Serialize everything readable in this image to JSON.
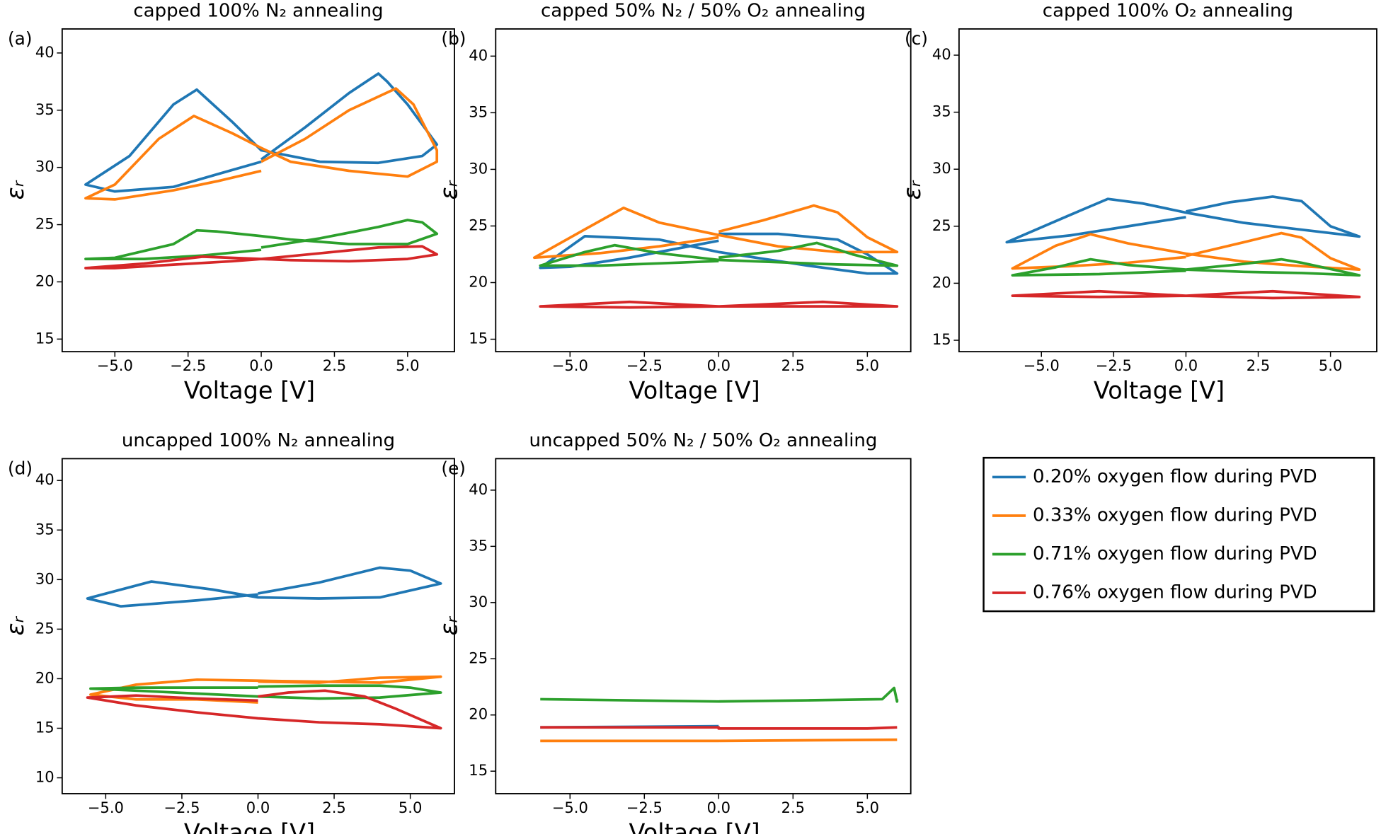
{
  "chart_data": [
    {
      "type": "line",
      "panel": "(a)",
      "title": "capped 100% N₂ annealing",
      "xlabel": "Voltage [V]",
      "ylabel": "εᵣ",
      "xlim": [
        -6.8,
        6.6
      ],
      "ylim": [
        13.9,
        42.1
      ],
      "xticks": [
        {
          "value": -5,
          "label": "−5.0"
        },
        {
          "value": -2.5,
          "label": "−2.5"
        },
        {
          "value": 0,
          "label": "0.0"
        },
        {
          "value": 2.5,
          "label": "2.5"
        },
        {
          "value": 5,
          "label": "5.0"
        }
      ],
      "yticks": [
        15,
        20,
        25,
        30,
        35,
        40
      ],
      "series": [
        {
          "name": "0.20% oxygen flow during PVD",
          "color": "#1f77b4",
          "x": [
            0,
            1.5,
            3,
            4,
            4.3,
            5,
            6,
            5.5,
            4,
            2,
            0,
            -1,
            -2.2,
            -3,
            -4.5,
            -6,
            -5,
            -3,
            -1.5,
            0
          ],
          "values": [
            30.7,
            33.5,
            36.5,
            38.2,
            37.5,
            35.5,
            32,
            31,
            30.4,
            30.5,
            31.5,
            34,
            36.8,
            35.5,
            31,
            28.5,
            27.9,
            28.3,
            29.4,
            30.5
          ]
        },
        {
          "name": "0.33% oxygen flow during PVD",
          "color": "#ff7f0e",
          "x": [
            0,
            1.5,
            3,
            4.6,
            5.2,
            6,
            6,
            5,
            3,
            1,
            0,
            -1,
            -2.3,
            -3.5,
            -5,
            -6,
            -5,
            -3,
            -1.5,
            0
          ],
          "values": [
            30.5,
            32.5,
            35,
            36.9,
            35.5,
            31.5,
            30.5,
            29.2,
            29.7,
            30.5,
            31.7,
            33,
            34.5,
            32.5,
            28.5,
            27.3,
            27.2,
            28,
            28.8,
            29.7
          ]
        },
        {
          "name": "0.71% oxygen flow during PVD",
          "color": "#2ca02c",
          "x": [
            0,
            2,
            4,
            5,
            5.5,
            6,
            5,
            3,
            1,
            0,
            -1.5,
            -2.2,
            -3,
            -5,
            -6,
            -4,
            -2,
            0
          ],
          "values": [
            23,
            23.8,
            24.8,
            25.4,
            25.2,
            24.2,
            23.3,
            23.3,
            23.7,
            24,
            24.4,
            24.5,
            23.3,
            22.1,
            22,
            22,
            22.3,
            22.8
          ]
        },
        {
          "name": "0.76% oxygen flow during PVD",
          "color": "#d62728",
          "x": [
            0,
            2,
            4,
            5.5,
            6,
            5,
            3,
            1,
            0,
            -2,
            -4,
            -6,
            -5,
            -3,
            -1,
            0
          ],
          "values": [
            22,
            22.5,
            23,
            23.1,
            22.4,
            22.0,
            21.8,
            21.9,
            22,
            22.2,
            21.6,
            21.2,
            21.2,
            21.5,
            21.8,
            22
          ]
        }
      ]
    },
    {
      "type": "line",
      "panel": "(b)",
      "title": "capped 50% N₂ / 50% O₂ annealing",
      "xlabel": "Voltage [V]",
      "ylabel": "εᵣ",
      "xlim": [
        -7.5,
        6.46
      ],
      "ylim": [
        13.9,
        42.4
      ],
      "xticks": [
        {
          "value": -5,
          "label": "−5.0"
        },
        {
          "value": -2.5,
          "label": "−2.5"
        },
        {
          "value": 0,
          "label": "0.0"
        },
        {
          "value": 2.5,
          "label": "2.5"
        },
        {
          "value": 5,
          "label": "5.0"
        }
      ],
      "yticks": [
        15,
        20,
        25,
        30,
        35,
        40
      ],
      "series": [
        {
          "color": "#1f77b4",
          "x": [
            0,
            2,
            4,
            5,
            6,
            5,
            3,
            0,
            -2,
            -4.5,
            -6,
            -5,
            -3,
            -1,
            0
          ],
          "values": [
            24.3,
            24.3,
            23.8,
            22.5,
            20.8,
            20.8,
            21.5,
            22.7,
            23.8,
            24.1,
            21.3,
            21.4,
            22.2,
            23.2,
            23.7
          ]
        },
        {
          "color": "#ff7f0e",
          "x": [
            0,
            1.5,
            3.2,
            4,
            5,
            6,
            4,
            2,
            0,
            -2,
            -3.2,
            -4.5,
            -6.2,
            -4,
            -2,
            0
          ],
          "values": [
            24.5,
            25.5,
            26.8,
            26.2,
            24,
            22.7,
            22.7,
            23.2,
            24.2,
            25.3,
            26.6,
            24.7,
            22.2,
            22.6,
            23.2,
            24
          ]
        },
        {
          "color": "#2ca02c",
          "x": [
            0,
            2,
            3.3,
            4.5,
            6,
            4,
            2,
            0,
            -2,
            -3.5,
            -4.5,
            -6,
            -4,
            -2,
            0
          ],
          "values": [
            22.2,
            22.8,
            23.5,
            22.5,
            21.5,
            21.6,
            21.8,
            22,
            22.6,
            23.3,
            22.7,
            21.5,
            21.5,
            21.7,
            21.9
          ]
        },
        {
          "color": "#d62728",
          "x": [
            0,
            3.5,
            6,
            3,
            0,
            -3,
            -6,
            -3,
            0
          ],
          "values": [
            17.9,
            18.3,
            17.9,
            17.9,
            17.9,
            18.3,
            17.9,
            17.8,
            17.9
          ]
        }
      ]
    },
    {
      "type": "line",
      "panel": "(c)",
      "title": "capped 100% O₂ annealing",
      "xlabel": "Voltage [V]",
      "ylabel": "εᵣ",
      "xlim": [
        -7.85,
        6.6
      ],
      "ylim": [
        14.0,
        42.3
      ],
      "xticks": [
        {
          "value": -5,
          "label": "−5.0"
        },
        {
          "value": -2.5,
          "label": "−2.5"
        },
        {
          "value": 0,
          "label": "0.0"
        },
        {
          "value": 2.5,
          "label": "2.5"
        },
        {
          "value": 5,
          "label": "5.0"
        }
      ],
      "yticks": [
        15,
        20,
        25,
        30,
        35,
        40
      ],
      "series": [
        {
          "color": "#1f77b4",
          "x": [
            0,
            1.5,
            3,
            4,
            5,
            6,
            4,
            2,
            0,
            -1.5,
            -2.7,
            -4,
            -6.2,
            -4,
            -2,
            0
          ],
          "values": [
            26.3,
            27.1,
            27.6,
            27.2,
            25,
            24.1,
            24.7,
            25.3,
            26.2,
            27,
            27.4,
            26,
            23.6,
            24.2,
            25,
            25.8
          ]
        },
        {
          "color": "#ff7f0e",
          "x": [
            0,
            2,
            3.3,
            4,
            5,
            6,
            4,
            2,
            0,
            -2,
            -3.3,
            -4.5,
            -6,
            -4,
            -2,
            0
          ],
          "values": [
            22.4,
            23.6,
            24.4,
            24,
            22.2,
            21.2,
            21.5,
            21.9,
            22.6,
            23.5,
            24.3,
            23.3,
            21.3,
            21.5,
            21.8,
            22.3
          ]
        },
        {
          "color": "#2ca02c",
          "x": [
            0,
            2,
            3.3,
            4,
            6,
            4,
            2,
            0,
            -2,
            -3.3,
            -4.5,
            -6,
            -3,
            0
          ],
          "values": [
            21.2,
            21.7,
            22.1,
            21.8,
            20.7,
            20.9,
            21,
            21.2,
            21.6,
            22.1,
            21.4,
            20.7,
            20.8,
            21.1
          ]
        },
        {
          "color": "#d62728",
          "x": [
            0,
            3,
            6,
            3,
            0,
            -3,
            -6,
            -3,
            0
          ],
          "values": [
            18.9,
            19.3,
            18.8,
            18.7,
            18.9,
            19.3,
            18.9,
            18.8,
            18.9
          ]
        }
      ]
    },
    {
      "type": "line",
      "panel": "(d)",
      "title": "uncapped 100% N₂ annealing",
      "xlabel": "Voltage [V]",
      "ylabel": "εᵣ",
      "xlim": [
        -6.43,
        6.45
      ],
      "ylim": [
        8.4,
        42.2
      ],
      "xticks": [
        {
          "value": -5,
          "label": "−5.0"
        },
        {
          "value": -2.5,
          "label": "−2.5"
        },
        {
          "value": 0,
          "label": "0.0"
        },
        {
          "value": 2.5,
          "label": "2.5"
        },
        {
          "value": 5,
          "label": "5.0"
        }
      ],
      "yticks": [
        10,
        15,
        20,
        25,
        30,
        35,
        40
      ],
      "series": [
        {
          "color": "#1f77b4",
          "x": [
            0,
            2,
            4,
            5,
            6,
            4,
            2,
            0,
            -1.5,
            -3.5,
            -5.6,
            -4.5,
            -2,
            0
          ],
          "values": [
            28.6,
            29.7,
            31.2,
            30.9,
            29.6,
            28.2,
            28.1,
            28.2,
            29,
            29.8,
            28.1,
            27.3,
            27.9,
            28.5
          ]
        },
        {
          "color": "#ff7f0e",
          "x": [
            0,
            -2,
            -4,
            -5.5,
            -4,
            -2,
            0,
            2,
            4,
            6,
            4,
            2,
            0
          ],
          "values": [
            17.6,
            17.9,
            17.9,
            18.4,
            19.4,
            19.9,
            19.8,
            19.7,
            19.6,
            20.2,
            20.1,
            19.6,
            19.7
          ]
        },
        {
          "color": "#2ca02c",
          "x": [
            0,
            2,
            4,
            5,
            6,
            4,
            2,
            0,
            -2,
            -4,
            -5.5,
            -4,
            -2,
            0
          ],
          "values": [
            19.2,
            19.3,
            19.3,
            19.1,
            18.6,
            18.1,
            18.0,
            18.2,
            18.5,
            18.8,
            19,
            19.1,
            19.1,
            19.1
          ]
        },
        {
          "color": "#d62728",
          "x": [
            0,
            1,
            2.2,
            3.5,
            4.5,
            6,
            4,
            2,
            0,
            -2,
            -4,
            -5.6,
            -4,
            -2,
            0
          ],
          "values": [
            18.2,
            18.6,
            18.8,
            18.2,
            17,
            15,
            15.4,
            15.6,
            16,
            16.6,
            17.3,
            18.1,
            18.3,
            18,
            17.8
          ]
        }
      ]
    },
    {
      "type": "line",
      "panel": "(e)",
      "title": "uncapped 50% N₂ / 50% O₂ annealing",
      "xlabel": "Voltage [V]",
      "ylabel": "εᵣ",
      "xlim": [
        -7.5,
        6.46
      ],
      "ylim": [
        13.0,
        42.8
      ],
      "xticks": [
        {
          "value": -5,
          "label": "−5.0"
        },
        {
          "value": -2.5,
          "label": "−2.5"
        },
        {
          "value": 0,
          "label": "0.0"
        },
        {
          "value": 2.5,
          "label": "2.5"
        },
        {
          "value": 5,
          "label": "5.0"
        }
      ],
      "yticks": [
        15,
        20,
        25,
        30,
        35,
        40
      ],
      "series": [
        {
          "color": "#2ca02c",
          "x": [
            -6,
            -3,
            0,
            3,
            5.5,
            5.9,
            6,
            6
          ],
          "values": [
            21.4,
            21.3,
            21.2,
            21.3,
            21.4,
            22.4,
            21.2,
            21.4
          ]
        },
        {
          "color": "#1f77b4",
          "x": [
            -6,
            0
          ],
          "values": [
            18.9,
            19.0
          ]
        },
        {
          "color": "#d62728",
          "x": [
            -6,
            0,
            0,
            5,
            6
          ],
          "values": [
            18.9,
            18.9,
            18.8,
            18.8,
            18.9
          ]
        },
        {
          "color": "#ff7f0e",
          "x": [
            -6,
            0,
            6
          ],
          "values": [
            17.7,
            17.7,
            17.8
          ]
        }
      ]
    }
  ]
}
